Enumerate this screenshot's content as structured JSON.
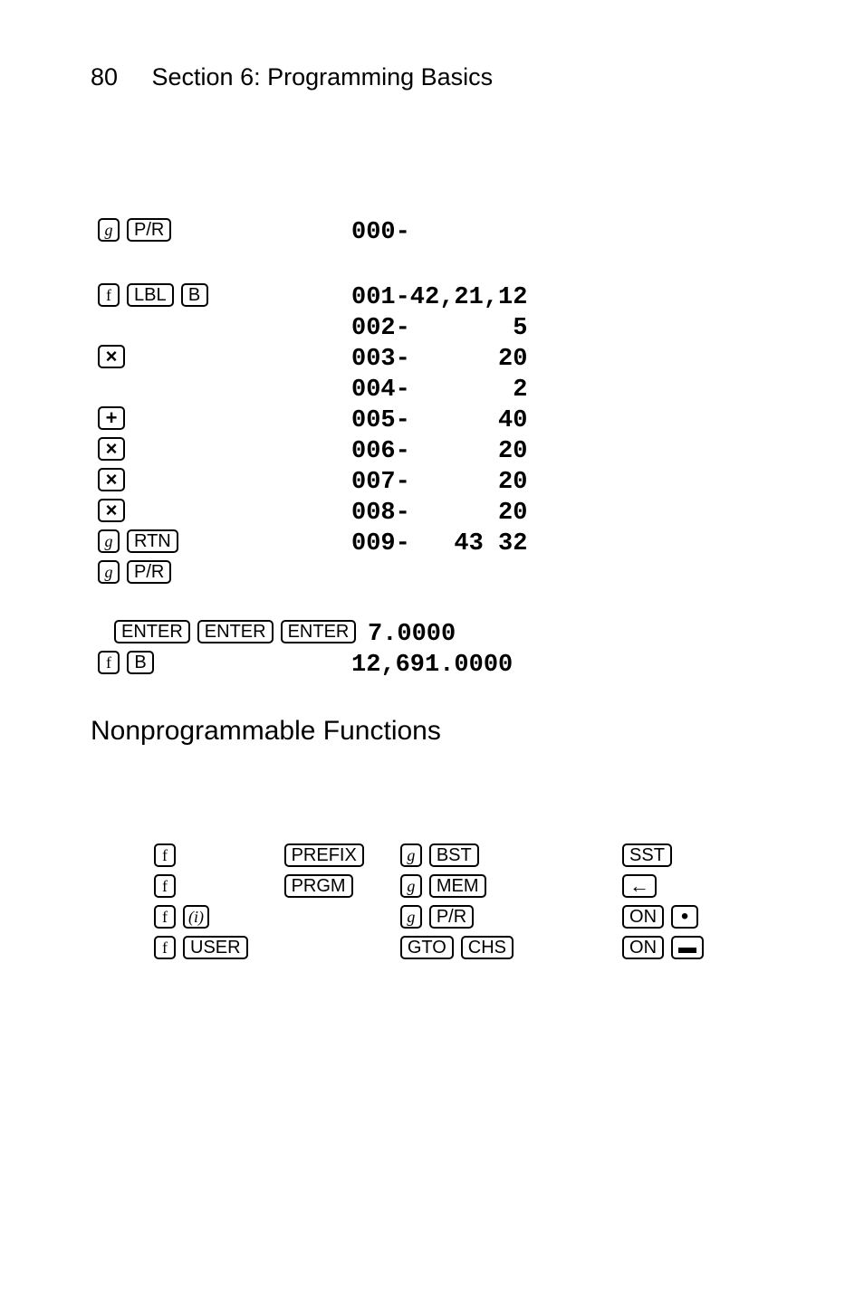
{
  "page_number": "80",
  "section_title": "Section 6: Programming Basics",
  "rows": [
    {
      "keys": [
        {
          "t": "g",
          "cls": "serif"
        },
        {
          "t": "P/R",
          "cls": "wide"
        }
      ],
      "disp": "000-",
      "gap_after": true
    },
    {
      "keys": [
        {
          "t": "f",
          "cls": "serifup"
        },
        {
          "t": "LBL",
          "cls": "wide"
        },
        {
          "t": "B",
          "cls": "narrow"
        }
      ],
      "disp": "001-42,21,12"
    },
    {
      "keys": [],
      "disp": "002-       5"
    },
    {
      "keys": [
        {
          "t": "×",
          "cls": "sym"
        }
      ],
      "disp": "003-      20"
    },
    {
      "keys": [],
      "disp": "004-       2"
    },
    {
      "keys": [
        {
          "t": "+",
          "cls": "sym"
        }
      ],
      "disp": "005-      40"
    },
    {
      "keys": [
        {
          "t": "×",
          "cls": "sym"
        }
      ],
      "disp": "006-      20"
    },
    {
      "keys": [
        {
          "t": "×",
          "cls": "sym"
        }
      ],
      "disp": "007-      20"
    },
    {
      "keys": [
        {
          "t": "×",
          "cls": "sym"
        }
      ],
      "disp": "008-      20"
    },
    {
      "keys": [
        {
          "t": "g",
          "cls": "serif"
        },
        {
          "t": "RTN",
          "cls": "wide"
        }
      ],
      "disp": "009-   43 32"
    },
    {
      "keys": [
        {
          "t": "g",
          "cls": "serif"
        },
        {
          "t": "P/R",
          "cls": "wide"
        }
      ],
      "disp": "",
      "gap_after": true
    },
    {
      "keys": [
        {
          "t": "ENTER",
          "cls": "wide"
        },
        {
          "t": "ENTER",
          "cls": "wide"
        },
        {
          "t": "ENTER",
          "cls": "wide"
        }
      ],
      "disp": "7.0000",
      "indent": true
    },
    {
      "keys": [
        {
          "t": "f",
          "cls": "serifup"
        },
        {
          "t": "B",
          "cls": "narrow"
        }
      ],
      "disp": "12,691.0000"
    }
  ],
  "subheading": "Nonprogrammable Functions",
  "np_cols": [
    [
      [
        {
          "t": "f",
          "cls": "serifup"
        }
      ],
      [
        {
          "t": "f",
          "cls": "serifup"
        }
      ],
      [
        {
          "t": "f",
          "cls": "serifup"
        },
        {
          "t": "(i)",
          "cls": "serif"
        }
      ],
      [
        {
          "t": "f",
          "cls": "serifup"
        },
        {
          "t": "USER",
          "cls": "wide"
        }
      ]
    ],
    [
      [
        {
          "t": "PREFIX",
          "cls": "wide"
        }
      ],
      [
        {
          "t": "PRGM",
          "cls": "wide"
        }
      ]
    ],
    [
      [
        {
          "t": "g",
          "cls": "serif"
        },
        {
          "t": "BST",
          "cls": "wide"
        }
      ],
      [
        {
          "t": "g",
          "cls": "serif"
        },
        {
          "t": "MEM",
          "cls": "wide"
        }
      ],
      [
        {
          "t": "g",
          "cls": "serif"
        },
        {
          "t": "P/R",
          "cls": "wide"
        }
      ],
      [
        {
          "t": "GTO",
          "cls": "wide"
        },
        {
          "t": "CHS",
          "cls": "wide"
        }
      ]
    ],
    [
      [
        {
          "t": "SST",
          "cls": "wide"
        }
      ],
      [
        {
          "t": "←",
          "cls": "sym"
        }
      ],
      [
        {
          "t": "ON",
          "cls": "wide"
        },
        {
          "t": "•",
          "cls": "narrow dot"
        }
      ],
      [
        {
          "t": "ON",
          "cls": "wide"
        },
        {
          "t": "▬",
          "cls": "narrow"
        }
      ]
    ]
  ]
}
